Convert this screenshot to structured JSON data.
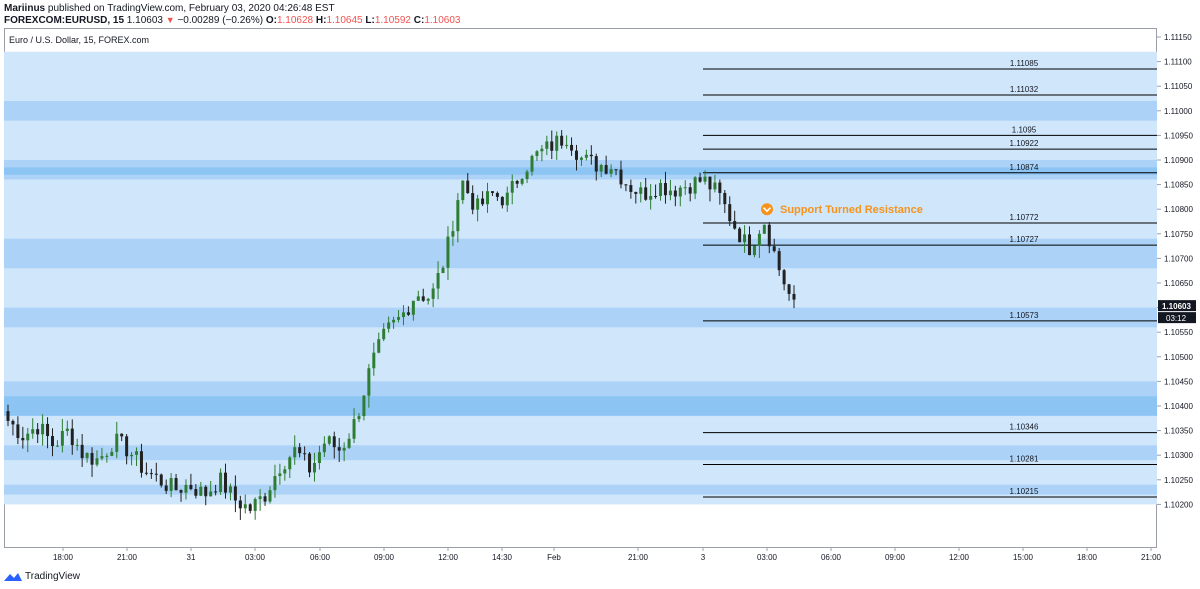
{
  "header": {
    "author": "Mariinus",
    "published_text": "published on TradingView.com, February 03, 2020 04:26:48 EST",
    "symbol": "FOREXCOM:EURUSD, 15",
    "last": "1.10603",
    "change": "−0.00289 (−0.26%)",
    "o_label": "O:",
    "o_value": "1.10628",
    "h_label": "H:",
    "h_value": "1.10645",
    "l_label": "L:",
    "l_value": "1.10592",
    "c_label": "C:",
    "c_value": "1.10603"
  },
  "footer": {
    "brand": "TradingView",
    "logo_icon": "tradingview-logo-icon"
  },
  "colors": {
    "up": "#2e7d32",
    "down": "#212121",
    "band_light": "#cfe6fb",
    "band_mid": "#acd3f7",
    "band_dark": "#8cc4f4",
    "annotation": "#f7931a",
    "price_badge": "#131722"
  },
  "chart_data": {
    "type": "candlestick",
    "title": "Euro / U.S. Dollar, 15, FOREX.com",
    "ylim": [
      1.1017,
      1.1113
    ],
    "y_ticks": [
      "1.11150",
      "1.11100",
      "1.11050",
      "1.11000",
      "1.10950",
      "1.10900",
      "1.10850",
      "1.10800",
      "1.10750",
      "1.10700",
      "1.10650",
      "1.10600",
      "1.10550",
      "1.10500",
      "1.10450",
      "1.10400",
      "1.10350",
      "1.10300",
      "1.10250",
      "1.10200"
    ],
    "x_ticks": [
      "18:00",
      "21:00",
      "31",
      "03:00",
      "06:00",
      "09:00",
      "12:00",
      "14:30",
      "Feb",
      "21:00",
      "3",
      "03:00",
      "06:00",
      "09:00",
      "12:00",
      "15:00",
      "18:00",
      "21:00"
    ],
    "levels": [
      "1.11085",
      "1.11032",
      "1.1095",
      "1.10922",
      "1.10874",
      "1.10772",
      "1.10727",
      "1.10573",
      "1.10346",
      "1.10281",
      "1.10215"
    ],
    "annotation": {
      "text": "Support Turned Resistance",
      "price": 1.108,
      "icon": "chevron-down-circle-icon"
    },
    "last_price_label": "1.10603",
    "countdown_label": "03:12",
    "price_path": [
      1.1037,
      1.1034,
      1.1036,
      1.1032,
      1.1035,
      1.103,
      1.1029,
      1.1033,
      1.1031,
      1.1027,
      1.1025,
      1.1023,
      1.1024,
      1.1022,
      1.1025,
      1.1021,
      1.1019,
      1.1022,
      1.1028,
      1.1031,
      1.1027,
      1.1033,
      1.1031,
      1.1037,
      1.1048,
      1.1055,
      1.1058,
      1.1063,
      1.1062,
      1.1071,
      1.1086,
      1.108,
      1.1083,
      1.1082,
      1.1088,
      1.1091,
      1.1093,
      1.1095,
      1.109,
      1.1089,
      1.1089,
      1.1085,
      1.1083,
      1.1085,
      1.1084,
      1.1085,
      1.1086,
      1.1083,
      1.1077,
      1.1072,
      1.1078,
      1.1068,
      1.106
    ],
    "candle_count": 160
  }
}
